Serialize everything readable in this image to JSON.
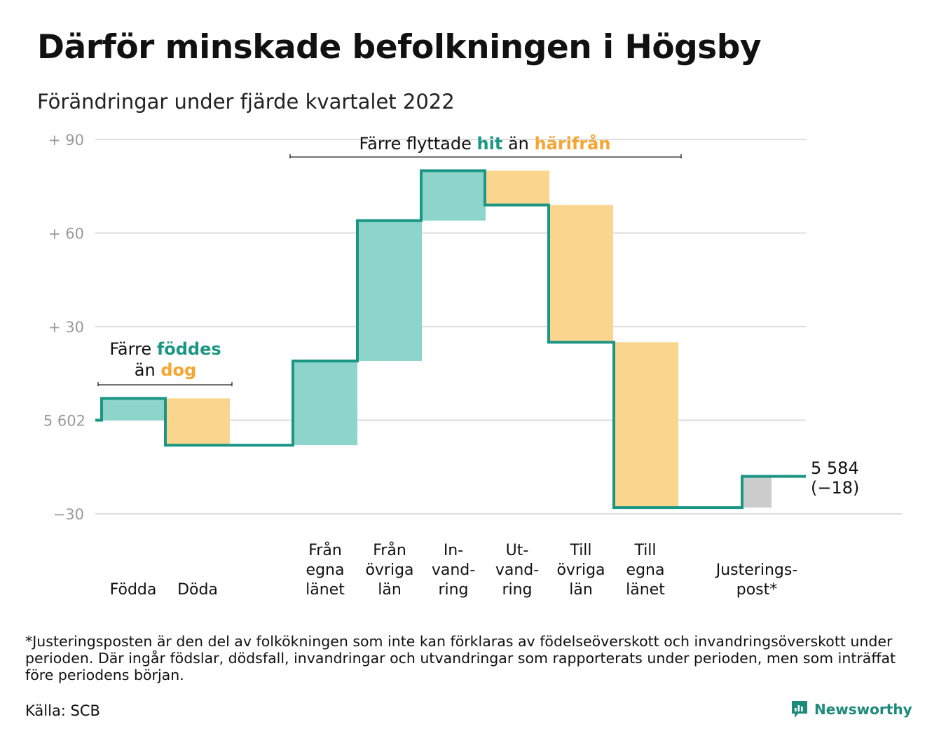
{
  "title": "Därför minskade befolkningen i Högsby",
  "subtitle": "Förändringar under fjärde kvartalet 2022",
  "colors": {
    "increase": "#8dd5cb",
    "decrease": "#fad58e",
    "adjustment": "#cccccc",
    "line": "#1b9584",
    "accent_teal": "#1b9584",
    "accent_orange": "#f4a532",
    "grid": "#dddddd",
    "axis_text": "#9a9a9a"
  },
  "chart_data": {
    "type": "waterfall",
    "start_value": 5602,
    "start_label": "5 602",
    "end_value": 5584,
    "end_label": "5 584",
    "end_change_label": "(−18)",
    "y_ticks": [
      {
        "value": 90,
        "label": "+ 90"
      },
      {
        "value": 60,
        "label": "+ 60"
      },
      {
        "value": 30,
        "label": "+ 30"
      },
      {
        "value": 0,
        "label": "5 602"
      },
      {
        "value": -30,
        "label": "−30"
      }
    ],
    "ylim": [
      -30,
      90
    ],
    "steps": [
      {
        "label": [
          "Födda"
        ],
        "value": 7,
        "kind": "increase"
      },
      {
        "label": [
          "Döda"
        ],
        "value": -15,
        "kind": "decrease"
      },
      {
        "label": [
          "Från",
          "egna",
          "länet"
        ],
        "value": 27,
        "kind": "increase"
      },
      {
        "label": [
          "Från",
          "övriga",
          "län"
        ],
        "value": 45,
        "kind": "increase"
      },
      {
        "label": [
          "In-",
          "vand-",
          "ring"
        ],
        "value": 16,
        "kind": "increase"
      },
      {
        "label": [
          "Ut-",
          "vand-",
          "ring"
        ],
        "value": -11,
        "kind": "decrease"
      },
      {
        "label": [
          "Till",
          "övriga",
          "län"
        ],
        "value": -44,
        "kind": "decrease"
      },
      {
        "label": [
          "Till",
          "egna",
          "länet"
        ],
        "value": -53,
        "kind": "decrease"
      },
      {
        "label": [
          "Justerings-",
          "post*"
        ],
        "value": 10,
        "kind": "adjustment"
      }
    ],
    "annotations": [
      {
        "text_before": "Färre",
        "teal_word": "föddes",
        "line2_before": "än",
        "orange_word": "dog"
      },
      {
        "text_before": "Färre flyttade",
        "teal_word": "hit",
        "middle": "än",
        "orange_word": "härifrån"
      }
    ]
  },
  "footnote": "*Justeringsposten är den del av folkökningen som inte kan förklaras av födelseöverskott och invandringsöverskott under perioden. Där ingår födslar, dödsfall, invandringar och utvandringar som rapporterats under perioden, men som inträffat före periodens början.",
  "source": "Källa: SCB",
  "brand": {
    "name": "Newsworthy",
    "icon": "newsworthy-logo-icon"
  }
}
